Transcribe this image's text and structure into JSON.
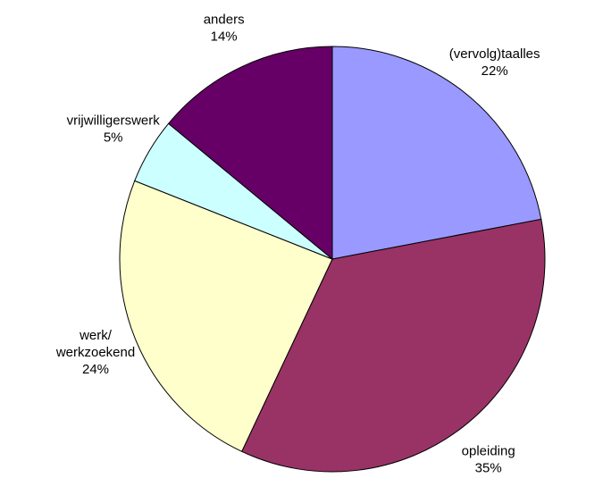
{
  "chart_data": {
    "type": "pie",
    "categories": [
      "(vervolg)taalles",
      "opleiding",
      "werk/ werkzoekend",
      "vrijwilligerswerk",
      "anders"
    ],
    "values": [
      22,
      35,
      24,
      5,
      14
    ],
    "value_labels": [
      "22%",
      "35%",
      "24%",
      "5%",
      "14%"
    ],
    "colors": [
      "#9999ff",
      "#993366",
      "#ffffcc",
      "#ccffff",
      "#660066"
    ]
  }
}
